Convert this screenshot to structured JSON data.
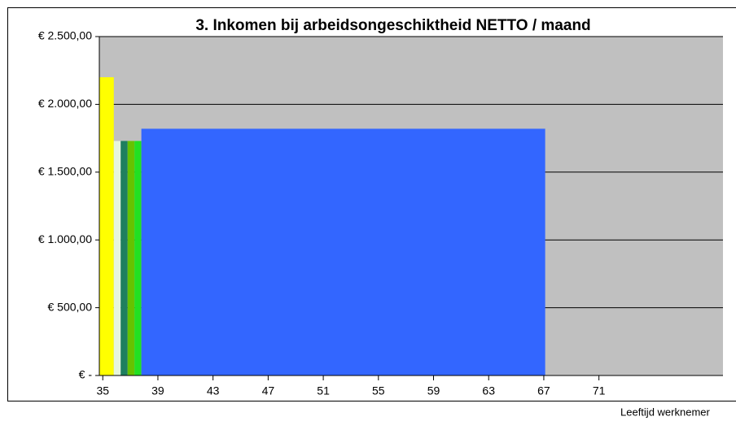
{
  "chart_data": {
    "type": "histogram",
    "title": "3. Inkomen bij arbeidsongeschiktheid NETTO / maand",
    "x_label": "Leeftijd werknemer",
    "bins": [
      34.75,
      35.8,
      36.3,
      36.8,
      37.3,
      37.8,
      67.1
    ],
    "values": [
      2200,
      1730,
      1730,
      1730,
      1730,
      1820
    ],
    "colors": [
      "#ffff00",
      "#e6f5dc",
      "#1f7f5f",
      "#66c200",
      "#22e022",
      "#3366ff"
    ],
    "xlim": [
      34.75,
      80
    ],
    "xticks": [
      35,
      39,
      43,
      47,
      51,
      55,
      59,
      63,
      67,
      71
    ],
    "ylim": [
      0,
      2500
    ],
    "yticks": [
      {
        "value": 0,
        "label": "€ -"
      },
      {
        "value": 500,
        "label": "€ 500,00"
      },
      {
        "value": 1000,
        "label": "€ 1.000,00"
      },
      {
        "value": 1500,
        "label": "€ 1.500,00"
      },
      {
        "value": 2000,
        "label": "€ 2.000,00"
      },
      {
        "value": 2500,
        "label": "€ 2.500,00"
      }
    ],
    "grid": true,
    "plot_background": "#c0c0c0"
  }
}
